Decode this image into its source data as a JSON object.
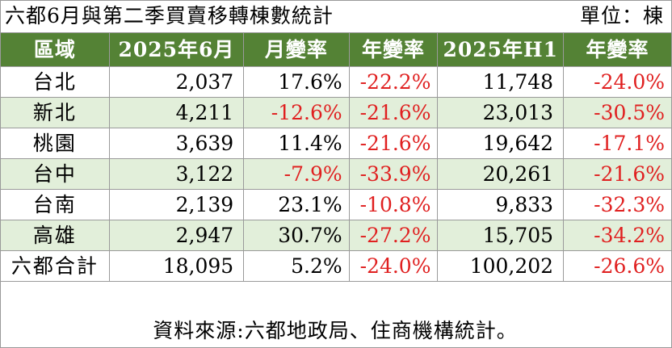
{
  "title": "六都6月與第二季買賣移轉棟數統計",
  "unit": "單位：棟",
  "source": "資料來源:六都地政局、住商機構統計。",
  "colors": {
    "header_bg": "#548235",
    "alt_row_bg": "#e2efda",
    "negative": "#e02020"
  },
  "chart_data": {
    "type": "table",
    "columns": [
      "區域",
      "2025年6月",
      "月變率",
      "年變率",
      "2025年H1",
      "年變率"
    ],
    "rows": [
      [
        "台北",
        "2,037",
        "17.6%",
        "-22.2%",
        "11,748",
        "-24.0%"
      ],
      [
        "新北",
        "4,211",
        "-12.6%",
        "-21.6%",
        "23,013",
        "-30.5%"
      ],
      [
        "桃園",
        "3,639",
        "11.4%",
        "-21.6%",
        "19,642",
        "-17.1%"
      ],
      [
        "台中",
        "3,122",
        "-7.9%",
        "-33.9%",
        "20,261",
        "-21.6%"
      ],
      [
        "台南",
        "2,139",
        "23.1%",
        "-10.8%",
        "9,833",
        "-32.3%"
      ],
      [
        "高雄",
        "2,947",
        "30.7%",
        "-27.2%",
        "15,705",
        "-34.2%"
      ],
      [
        "六都合計",
        "18,095",
        "5.2%",
        "-24.0%",
        "100,202",
        "-26.6%"
      ]
    ]
  }
}
